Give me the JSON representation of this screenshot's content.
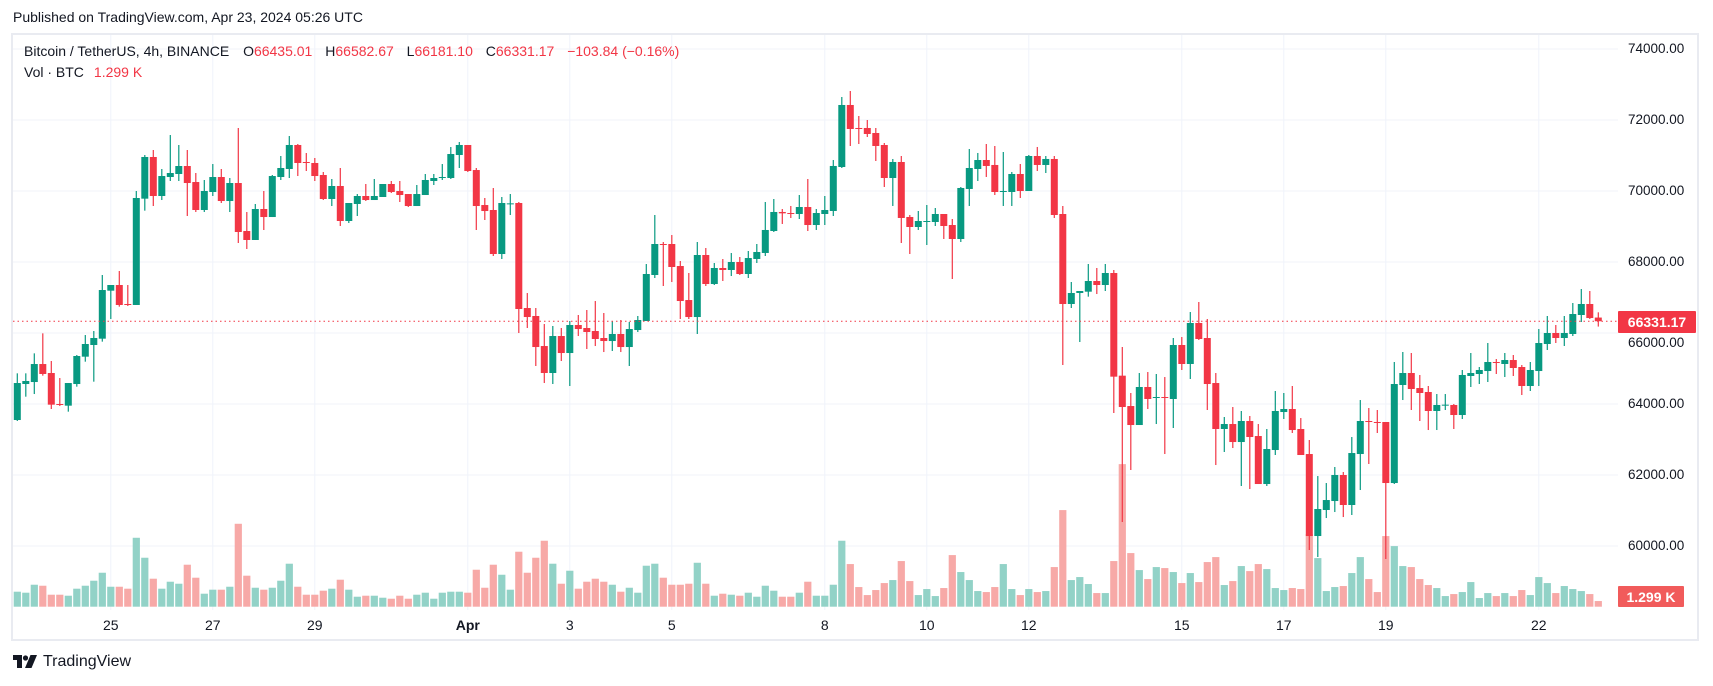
{
  "header": {
    "published": "Published on TradingView.com, Apr 23, 2024 05:26 UTC"
  },
  "legend": {
    "symbol": "Bitcoin / TetherUS, 4h, BINANCE",
    "o_label": "O",
    "o_value": "66435.01",
    "h_label": "H",
    "h_value": "66582.67",
    "l_label": "L",
    "l_value": "66181.10",
    "c_label": "C",
    "c_value": "66331.17",
    "change": "−103.84 (−0.16%)",
    "vol_label": "Vol · BTC",
    "vol_value": "1.299 K"
  },
  "price_tag": "66331.17",
  "volume_tag": "1.299 K",
  "footer": {
    "brand": "TradingView"
  },
  "colors": {
    "up": "#089981",
    "down": "#f23645",
    "up_volume": "#92d2c7",
    "down_volume": "#f7a9a7",
    "grid": "#f0f3fa"
  },
  "chart_data": {
    "type": "candlestick",
    "symbol": "BTCUSDT",
    "interval": "4h",
    "start": "2024-03-23T04:00:00Z",
    "ylim": [
      58000,
      74700
    ],
    "y_ticks": [
      "74000.00",
      "72000.00",
      "70000.00",
      "68000.00",
      "66000.00",
      "64000.00",
      "62000.00",
      "60000.00"
    ],
    "x_ticks": [
      {
        "label": "25",
        "date": "2024-03-25"
      },
      {
        "label": "27",
        "date": "2024-03-27"
      },
      {
        "label": "29",
        "date": "2024-03-29"
      },
      {
        "label": "Apr",
        "date": "2024-04-01",
        "month": true
      },
      {
        "label": "3",
        "date": "2024-04-03"
      },
      {
        "label": "5",
        "date": "2024-04-05"
      },
      {
        "label": "8",
        "date": "2024-04-08"
      },
      {
        "label": "10",
        "date": "2024-04-10"
      },
      {
        "label": "12",
        "date": "2024-04-12"
      },
      {
        "label": "15",
        "date": "2024-04-15"
      },
      {
        "label": "17",
        "date": "2024-04-17"
      },
      {
        "label": "19",
        "date": "2024-04-19"
      },
      {
        "label": "22",
        "date": "2024-04-22"
      }
    ],
    "last_price": 66331.17,
    "volume_unit": "K BTC",
    "ohlc": [
      [
        63549,
        64864,
        63521,
        64591
      ],
      [
        64563,
        64864,
        64206,
        64648
      ],
      [
        64619,
        65427,
        64281,
        65126
      ],
      [
        65126,
        65990,
        64798,
        64845
      ],
      [
        64873,
        65211,
        63859,
        63981
      ],
      [
        64000,
        64732,
        63943,
        63981
      ],
      [
        63953,
        64591,
        63784,
        64591
      ],
      [
        64563,
        65380,
        64488,
        65352
      ],
      [
        65333,
        65943,
        65192,
        65690
      ],
      [
        65662,
        66056,
        64629,
        65859
      ],
      [
        65840,
        67634,
        65756,
        67211
      ],
      [
        67192,
        67352,
        66394,
        67352
      ],
      [
        67352,
        67746,
        66742,
        66789
      ],
      [
        66817,
        67352,
        66760,
        66789
      ],
      [
        66789,
        70000,
        66789,
        69803
      ],
      [
        69784,
        71014,
        69446,
        70958
      ],
      [
        70958,
        71155,
        69577,
        69859
      ],
      [
        69859,
        70620,
        69746,
        70422
      ],
      [
        70394,
        71577,
        70282,
        70507
      ],
      [
        70479,
        71296,
        70282,
        70704
      ],
      [
        70704,
        71155,
        69296,
        70225
      ],
      [
        70253,
        70507,
        69408,
        69465
      ],
      [
        69465,
        70310,
        69408,
        70000
      ],
      [
        69972,
        70760,
        69859,
        70394
      ],
      [
        70394,
        70620,
        69662,
        69718
      ],
      [
        69718,
        70366,
        69408,
        70225
      ],
      [
        70225,
        71775,
        68535,
        68845
      ],
      [
        68873,
        69408,
        68366,
        68620
      ],
      [
        68620,
        69634,
        68620,
        69493
      ],
      [
        69493,
        70000,
        68901,
        69267
      ],
      [
        69267,
        70451,
        69267,
        70422
      ],
      [
        70394,
        70986,
        70310,
        70648
      ],
      [
        70620,
        71549,
        70366,
        71296
      ],
      [
        71296,
        71324,
        70422,
        70789
      ],
      [
        70817,
        71070,
        70563,
        70798
      ],
      [
        70789,
        70930,
        70282,
        70422
      ],
      [
        70451,
        70535,
        69746,
        69775
      ],
      [
        69775,
        70338,
        69577,
        70141
      ],
      [
        70141,
        70648,
        69014,
        69155
      ],
      [
        69155,
        69662,
        69098,
        69662
      ],
      [
        69634,
        69915,
        69296,
        69859
      ],
      [
        69859,
        70197,
        69718,
        69746
      ],
      [
        69746,
        70338,
        69746,
        69859
      ],
      [
        69831,
        70197,
        69831,
        70197
      ],
      [
        70197,
        70282,
        69944,
        69972
      ],
      [
        70000,
        70282,
        69690,
        69887
      ],
      [
        69915,
        69915,
        69549,
        69577
      ],
      [
        69577,
        70169,
        69577,
        69915
      ],
      [
        69887,
        70479,
        69887,
        70310
      ],
      [
        70282,
        70479,
        70169,
        70366
      ],
      [
        70375,
        70760,
        70310,
        70394
      ],
      [
        70366,
        71239,
        70338,
        71042
      ],
      [
        71014,
        71380,
        70648,
        71296
      ],
      [
        71296,
        71296,
        70535,
        70563
      ],
      [
        70591,
        70648,
        68901,
        69577
      ],
      [
        69605,
        69803,
        69183,
        69436
      ],
      [
        69465,
        70084,
        68169,
        68225
      ],
      [
        68225,
        69831,
        68084,
        69662
      ],
      [
        69634,
        69915,
        69324,
        69652
      ],
      [
        69662,
        69690,
        65999,
        66676
      ],
      [
        66704,
        67126,
        66141,
        66450
      ],
      [
        66479,
        66704,
        65070,
        65605
      ],
      [
        65633,
        66253,
        64591,
        64873
      ],
      [
        64873,
        66197,
        64563,
        65915
      ],
      [
        65915,
        66141,
        65211,
        65436
      ],
      [
        65436,
        66338,
        64507,
        66225
      ],
      [
        66225,
        66507,
        65915,
        66112
      ],
      [
        66141,
        66648,
        65549,
        66028
      ],
      [
        66056,
        66901,
        65633,
        65831
      ],
      [
        65859,
        66563,
        65464,
        65774
      ],
      [
        65774,
        66338,
        65493,
        65972
      ],
      [
        65972,
        66366,
        65464,
        65605
      ],
      [
        65605,
        66310,
        65070,
        66112
      ],
      [
        66084,
        66479,
        66028,
        66366
      ],
      [
        66338,
        67943,
        66338,
        67662
      ],
      [
        67634,
        69324,
        67549,
        68507
      ],
      [
        68507,
        68563,
        67324,
        68479
      ],
      [
        68507,
        68760,
        67436,
        67859
      ],
      [
        67887,
        68028,
        66394,
        66901
      ],
      [
        66929,
        67690,
        66394,
        66450
      ],
      [
        66450,
        68563,
        65972,
        68197
      ],
      [
        68197,
        68394,
        67324,
        67380
      ],
      [
        67380,
        67972,
        67352,
        67831
      ],
      [
        67831,
        68084,
        67465,
        67775
      ],
      [
        67775,
        68253,
        67605,
        68000
      ],
      [
        68000,
        68141,
        67634,
        67662
      ],
      [
        67662,
        68310,
        67549,
        68112
      ],
      [
        68085,
        68507,
        67972,
        68282
      ],
      [
        68254,
        69690,
        68169,
        68902
      ],
      [
        68873,
        69775,
        68845,
        69409
      ],
      [
        69409,
        69493,
        69071,
        69371
      ],
      [
        69380,
        69578,
        69240,
        69362
      ],
      [
        69352,
        69887,
        69211,
        69549
      ],
      [
        69549,
        70338,
        68873,
        69042
      ],
      [
        69042,
        69493,
        68902,
        69380
      ],
      [
        69352,
        69859,
        69042,
        69465
      ],
      [
        69437,
        70873,
        69296,
        70705
      ],
      [
        70676,
        72648,
        70648,
        72423
      ],
      [
        72423,
        72817,
        71268,
        71747
      ],
      [
        71775,
        72113,
        71324,
        71756
      ],
      [
        71775,
        72000,
        71521,
        71606
      ],
      [
        71634,
        71775,
        70845,
        71268
      ],
      [
        71296,
        71352,
        70113,
        70366
      ],
      [
        70366,
        70902,
        69578,
        70817
      ],
      [
        70817,
        70986,
        68535,
        69240
      ],
      [
        69268,
        69324,
        68225,
        68986
      ],
      [
        68986,
        69437,
        68902,
        69155
      ],
      [
        69136,
        69606,
        68479,
        69155
      ],
      [
        69127,
        69521,
        69014,
        69352
      ],
      [
        69352,
        69352,
        68648,
        69014
      ],
      [
        69042,
        69211,
        67521,
        68648
      ],
      [
        68648,
        70113,
        68563,
        70085
      ],
      [
        70057,
        71183,
        69578,
        70648
      ],
      [
        70620,
        71071,
        70282,
        70873
      ],
      [
        70873,
        71324,
        70395,
        70705
      ],
      [
        70733,
        71268,
        69887,
        69972
      ],
      [
        69981,
        71099,
        69578,
        70000
      ],
      [
        69972,
        70535,
        69578,
        70479
      ],
      [
        70479,
        70761,
        69803,
        70000
      ],
      [
        70000,
        71014,
        70000,
        70986
      ],
      [
        70986,
        71240,
        70564,
        70733
      ],
      [
        70733,
        70986,
        70507,
        70902
      ],
      [
        70902,
        70986,
        69240,
        69324
      ],
      [
        69352,
        69578,
        65099,
        66817
      ],
      [
        66817,
        67437,
        66704,
        67127
      ],
      [
        67127,
        67183,
        65746,
        67183
      ],
      [
        67164,
        67944,
        67023,
        67465
      ],
      [
        67465,
        67831,
        67098,
        67352
      ],
      [
        67352,
        67944,
        67183,
        67690
      ],
      [
        67690,
        67775,
        63746,
        64770
      ],
      [
        64798,
        65605,
        60676,
        63915
      ],
      [
        63943,
        64310,
        62141,
        63408
      ],
      [
        63408,
        64873,
        63408,
        64479
      ],
      [
        64479,
        64901,
        63859,
        64141
      ],
      [
        64169,
        64845,
        63436,
        64197
      ],
      [
        64197,
        64760,
        62591,
        64169
      ],
      [
        64141,
        65859,
        63324,
        65662
      ],
      [
        65662,
        65887,
        64958,
        65127
      ],
      [
        65127,
        66591,
        64704,
        66282
      ],
      [
        66282,
        66873,
        65803,
        65831
      ],
      [
        65859,
        66394,
        63831,
        64563
      ],
      [
        64591,
        64873,
        62281,
        63296
      ],
      [
        63296,
        63634,
        62648,
        63436
      ],
      [
        63436,
        63915,
        62760,
        62929
      ],
      [
        62929,
        63803,
        61690,
        63521
      ],
      [
        63521,
        63662,
        61605,
        63070
      ],
      [
        63098,
        63436,
        61746,
        61746
      ],
      [
        61746,
        63296,
        61690,
        62732
      ],
      [
        62704,
        64366,
        62563,
        63803
      ],
      [
        63774,
        64310,
        63577,
        63859
      ],
      [
        63859,
        64507,
        63183,
        63267
      ],
      [
        63296,
        63605,
        62563,
        62563
      ],
      [
        62591,
        62986,
        59887,
        60281
      ],
      [
        60281,
        61971,
        59690,
        61042
      ],
      [
        61014,
        61774,
        60788,
        61295
      ],
      [
        61267,
        62225,
        60957,
        62000
      ],
      [
        62000,
        62084,
        60816,
        61155
      ],
      [
        61155,
        63070,
        60873,
        62619
      ],
      [
        62591,
        64112,
        61577,
        63521
      ],
      [
        63521,
        63887,
        62310,
        63493
      ],
      [
        63493,
        63831,
        63183,
        63465
      ],
      [
        63493,
        63493,
        59634,
        61774
      ],
      [
        61774,
        65183,
        61746,
        64563
      ],
      [
        64535,
        65465,
        64112,
        64873
      ],
      [
        64873,
        65437,
        63831,
        64422
      ],
      [
        64450,
        64817,
        63521,
        64310
      ],
      [
        64338,
        64507,
        63267,
        63803
      ],
      [
        63803,
        64281,
        63267,
        63972
      ],
      [
        63962,
        64281,
        63831,
        63981
      ],
      [
        63972,
        64000,
        63296,
        63690
      ],
      [
        63690,
        64958,
        63577,
        64817
      ],
      [
        64789,
        65437,
        64479,
        64873
      ],
      [
        64845,
        65042,
        64563,
        64958
      ],
      [
        64929,
        65718,
        64620,
        65183
      ],
      [
        65183,
        65267,
        64845,
        65164
      ],
      [
        65127,
        65437,
        64760,
        65239
      ],
      [
        65239,
        65380,
        64789,
        65014
      ],
      [
        65042,
        65098,
        64253,
        64507
      ],
      [
        64507,
        65183,
        64366,
        64958
      ],
      [
        64929,
        66113,
        64507,
        65718
      ],
      [
        65690,
        66479,
        65521,
        66000
      ],
      [
        66000,
        66225,
        65718,
        65859
      ],
      [
        65859,
        66479,
        65634,
        66000
      ],
      [
        65972,
        66845,
        65915,
        66535
      ],
      [
        66507,
        67239,
        66310,
        66817
      ],
      [
        66817,
        67183,
        66394,
        66422
      ],
      [
        66435.01,
        66582.67,
        66181.1,
        66331.17
      ]
    ],
    "volume": [
      3.44,
      3.21,
      5.04,
      4.81,
      2.75,
      2.75,
      2.52,
      4.13,
      4.81,
      5.96,
      7.79,
      4.58,
      4.58,
      4.13,
      15.81,
      11.23,
      6.42,
      4.13,
      5.73,
      5.27,
      9.63,
      6.65,
      2.98,
      3.9,
      3.9,
      4.58,
      19.02,
      7.11,
      4.35,
      3.9,
      4.35,
      5.96,
      9.86,
      4.58,
      2.75,
      2.75,
      3.67,
      4.13,
      6.19,
      3.9,
      2.29,
      2.52,
      2.52,
      2.06,
      1.83,
      2.52,
      1.83,
      2.75,
      3.21,
      1.83,
      3.21,
      3.44,
      3.44,
      3.21,
      8.48,
      4.35,
      9.63,
      7.33,
      3.9,
      12.61,
      7.79,
      11.23,
      15.13,
      9.86,
      5.27,
      8.25,
      4.13,
      5.73,
      6.42,
      5.73,
      5.04,
      3.44,
      4.35,
      3.21,
      9.4,
      9.86,
      6.65,
      5.04,
      5.04,
      5.27,
      10.08,
      5.27,
      2.52,
      2.98,
      2.75,
      2.52,
      3.21,
      2.29,
      4.81,
      3.67,
      2.29,
      2.29,
      3.21,
      5.73,
      2.52,
      2.52,
      5.04,
      15.13,
      9.78,
      4.51,
      2.67,
      3.82,
      5.42,
      6.11,
      10.47,
      5.88,
      2.67,
      4.05,
      2.44,
      4.28,
      11.84,
      7.95,
      6.11,
      3.59,
      3.36,
      4.51,
      9.78,
      4.05,
      2.67,
      4.05,
      3.36,
      3.59,
      9.09,
      22.16,
      6.11,
      6.8,
      5.2,
      3.13,
      3.13,
      10.47,
      32.7,
      12.3,
      8.4,
      6.34,
      9.09,
      8.86,
      7.95,
      5.42,
      7.72,
      5.65,
      10.24,
      11.38,
      4.97,
      5.88,
      9.32,
      8.17,
      9.78,
      8.63,
      4.28,
      3.82,
      4.28,
      4.05,
      16.66,
      11.15,
      3.59,
      4.51,
      4.74,
      7.72,
      11.38,
      6.34,
      3.36,
      16.2,
      13.9,
      9.32,
      9.09,
      6.34,
      4.97,
      4.28,
      2.44,
      2.9,
      3.36,
      5.65,
      1.99,
      3.13,
      2.44,
      3.13,
      2.44,
      3.82,
      2.67,
      6.8,
      5.42,
      3.13,
      4.74,
      4.05,
      3.59,
      2.9,
      1.299
    ]
  }
}
